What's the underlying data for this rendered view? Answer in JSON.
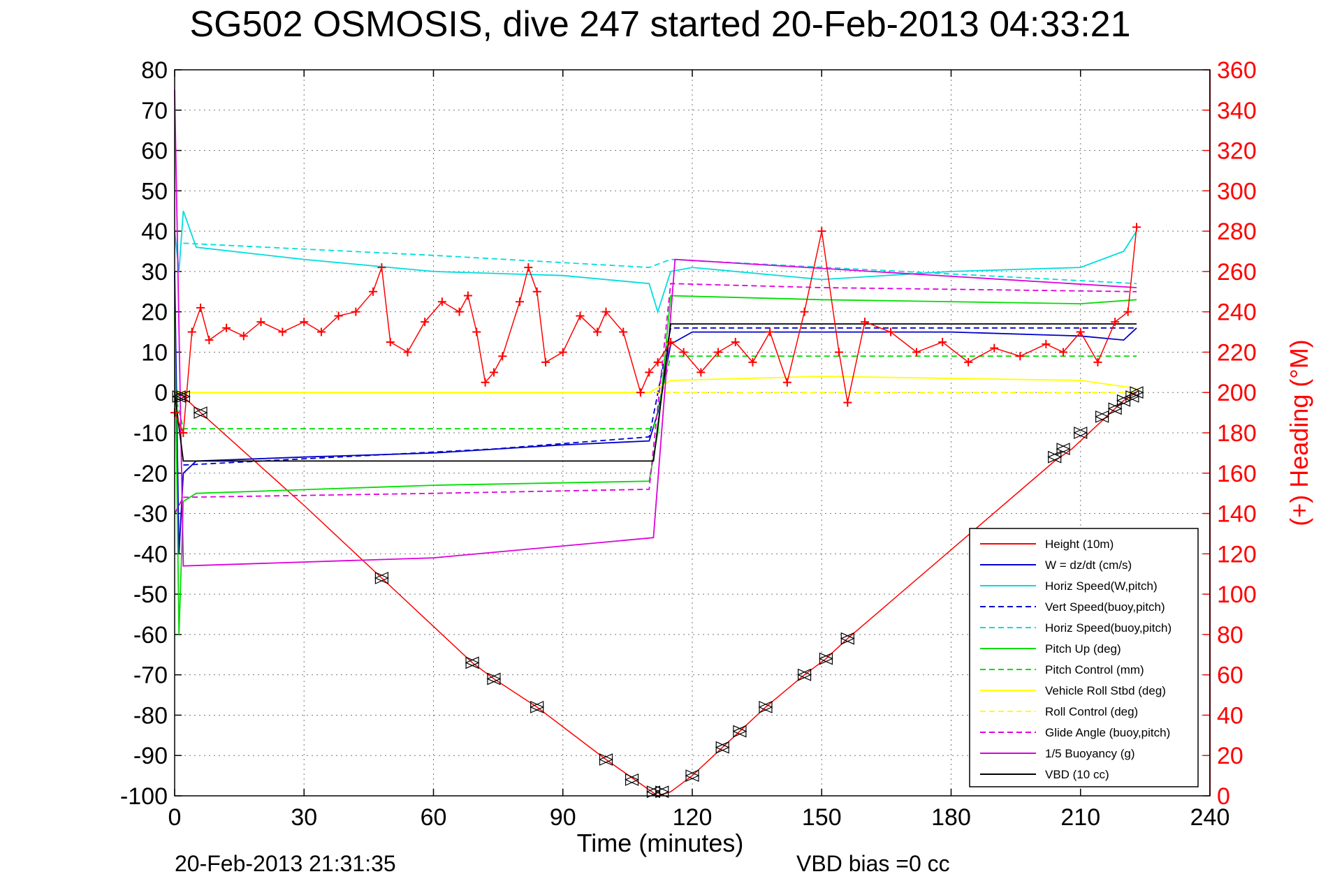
{
  "title": "SG502 OSMOSIS, dive 247 started 20-Feb-2013 04:33:21",
  "footer": {
    "timestamp": "20-Feb-2013 21:31:35",
    "vbd_bias": "VBD bias =0 cc"
  },
  "colors": {
    "height": "#ff0000",
    "w": "#0000cc",
    "horiz_speed": "#00dddd",
    "pitch": "#00dd00",
    "roll": "#ffff00",
    "glide": "#dd00dd",
    "vbd": "#000000",
    "heading": "#ff0000",
    "grid": "#777777"
  },
  "chart_data": {
    "type": "line",
    "xlabel": "Time (minutes)",
    "ylabel_right": "(+) Heading (°M)",
    "xlim": [
      0,
      240
    ],
    "ylim_left": [
      -100,
      80
    ],
    "ylim_right": [
      0,
      360
    ],
    "x_ticks": [
      "0",
      "30",
      "60",
      "90",
      "120",
      "150",
      "180",
      "210",
      "240"
    ],
    "y_left_ticks": [
      "80",
      "70",
      "60",
      "50",
      "40",
      "30",
      "20",
      "10",
      "0",
      "-10",
      "-20",
      "-30",
      "-40",
      "-50",
      "-60",
      "-70",
      "-80",
      "-90",
      "-100"
    ],
    "y_right_ticks": [
      "360",
      "340",
      "320",
      "300",
      "280",
      "260",
      "240",
      "220",
      "200",
      "180",
      "160",
      "140",
      "120",
      "100",
      "80",
      "60",
      "40",
      "20",
      "0"
    ],
    "grid": true,
    "legend_position": "lower-right",
    "series": [
      {
        "name": "Height (10m)",
        "key": "height",
        "style": "solid",
        "x": [
          0,
          2,
          6,
          30,
          48,
          69,
          74,
          84,
          100,
          108,
          112,
          115,
          120,
          127,
          131,
          137,
          146,
          151,
          156,
          180,
          204,
          208,
          215,
          220,
          223
        ],
        "y": [
          0,
          -1,
          -5,
          -28,
          -46,
          -67,
          -71,
          -78,
          -91,
          -97,
          -100,
          -99,
          -95,
          -88,
          -84,
          -78,
          -70,
          -66,
          -61,
          -39,
          -17,
          -14,
          -7,
          -2,
          0
        ]
      },
      {
        "name": "W = dz/dt (cm/s)",
        "key": "w",
        "style": "solid",
        "x": [
          0,
          1,
          2,
          5,
          30,
          60,
          90,
          110,
          112,
          115,
          120,
          150,
          180,
          210,
          220,
          223
        ],
        "y": [
          30,
          -40,
          -20,
          -17,
          -16,
          -15,
          -13,
          -12,
          -5,
          12,
          15,
          15,
          15,
          14,
          13,
          16
        ]
      },
      {
        "name": "Horiz Speed(W,pitch)",
        "key": "horiz_speed",
        "style": "solid",
        "x": [
          0,
          1,
          2,
          5,
          30,
          60,
          90,
          110,
          112,
          115,
          120,
          150,
          180,
          210,
          220,
          223
        ],
        "y": [
          40,
          30,
          45,
          36,
          33,
          30,
          29,
          27,
          20,
          30,
          31,
          28,
          30,
          31,
          35,
          40
        ]
      },
      {
        "name": "Vert Speed(buoy,pitch)",
        "key": "w",
        "style": "dashed",
        "x": [
          2,
          74,
          110,
          115,
          223
        ],
        "y": [
          -18,
          -14,
          -11,
          16,
          16
        ]
      },
      {
        "name": "Horiz Speed(buoy,pitch)",
        "key": "horiz_speed",
        "style": "dashed",
        "x": [
          2,
          60,
          110,
          115,
          223
        ],
        "y": [
          37,
          34,
          31,
          33,
          27
        ]
      },
      {
        "name": "Pitch Up (deg)",
        "key": "pitch",
        "style": "solid",
        "x": [
          0,
          1,
          2,
          5,
          60,
          110,
          112,
          115,
          150,
          210,
          223
        ],
        "y": [
          20,
          -60,
          -27,
          -25,
          -23,
          -22,
          -10,
          24,
          23,
          22,
          23
        ]
      },
      {
        "name": "Pitch Control (mm)",
        "key": "pitch",
        "style": "dashed",
        "x": [
          0,
          2,
          111,
          115,
          223
        ],
        "y": [
          0,
          -9,
          -9,
          9,
          9
        ]
      },
      {
        "name": "Vehicle Roll Stbd (deg)",
        "key": "roll",
        "style": "solid",
        "x": [
          0,
          2,
          60,
          110,
          115,
          150,
          210,
          223
        ],
        "y": [
          0,
          0,
          0,
          0,
          3,
          4,
          3,
          1
        ]
      },
      {
        "name": "Roll Control (deg)",
        "key": "roll",
        "style": "dashed",
        "x": [
          0,
          223
        ],
        "y": [
          0,
          0
        ]
      },
      {
        "name": "Glide Angle (buoy,pitch)",
        "key": "glide",
        "style": "dashed",
        "x": [
          0,
          2,
          60,
          110,
          115,
          150,
          223
        ],
        "y": [
          -30,
          -26,
          -25,
          -24,
          27,
          26,
          25
        ]
      },
      {
        "name": "1/5 Buoyancy (g)",
        "key": "glide",
        "style": "solid",
        "x": [
          0,
          2,
          60,
          111,
          116,
          223
        ],
        "y": [
          75,
          -43,
          -41,
          -36,
          33,
          26
        ]
      },
      {
        "name": "VBD (10 cc)",
        "key": "vbd",
        "style": "solid",
        "x": [
          0,
          2,
          111,
          115,
          223
        ],
        "y": [
          0,
          -17,
          -17,
          17,
          17
        ]
      }
    ],
    "heading": {
      "x": [
        0,
        2,
        4,
        6,
        8,
        12,
        16,
        20,
        25,
        30,
        34,
        38,
        42,
        46,
        48,
        50,
        54,
        58,
        62,
        66,
        68,
        70,
        72,
        74,
        76,
        80,
        82,
        84,
        86,
        90,
        94,
        98,
        100,
        104,
        108,
        110,
        112,
        115,
        118,
        122,
        126,
        130,
        134,
        138,
        142,
        146,
        150,
        154,
        156,
        160,
        166,
        172,
        178,
        184,
        190,
        196,
        202,
        206,
        210,
        214,
        218,
        221,
        223
      ],
      "y": [
        190,
        180,
        230,
        242,
        226,
        232,
        228,
        235,
        230,
        235,
        230,
        238,
        240,
        250,
        262,
        225,
        220,
        235,
        245,
        240,
        248,
        230,
        205,
        210,
        218,
        245,
        262,
        250,
        215,
        220,
        238,
        230,
        240,
        230,
        200,
        210,
        215,
        225,
        220,
        210,
        220,
        225,
        215,
        230,
        205,
        240,
        280,
        220,
        195,
        235,
        230,
        220,
        225,
        215,
        222,
        218,
        224,
        220,
        230,
        215,
        235,
        240,
        282
      ]
    },
    "markers": {
      "x": [
        1,
        2,
        6,
        48,
        69,
        74,
        84,
        100,
        106,
        111,
        113,
        120,
        127,
        131,
        137,
        146,
        151,
        156,
        204,
        206,
        210,
        215,
        218,
        220,
        222,
        223
      ],
      "y": [
        -1,
        -1,
        -5,
        -46,
        -67,
        -71,
        -78,
        -91,
        -96,
        -99,
        -99,
        -95,
        -88,
        -84,
        -78,
        -70,
        -66,
        -61,
        -16,
        -14,
        -10,
        -6,
        -4,
        -2,
        -1,
        0
      ]
    }
  }
}
